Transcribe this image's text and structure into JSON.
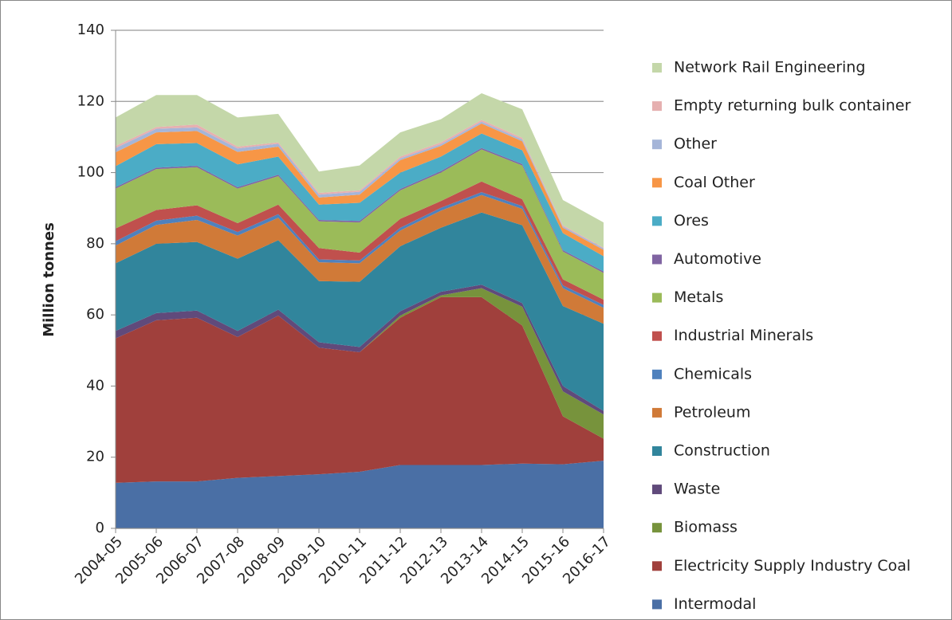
{
  "chart_data": {
    "type": "stacked-area",
    "y_label": "Million tonnes",
    "categories": [
      "2004-05",
      "2005-06",
      "2006-07",
      "2007-08",
      "2008-09",
      "2009-10",
      "2010-11",
      "2011-12",
      "2012-13",
      "2013-14",
      "2014-15",
      "2015-16",
      "2016-17"
    ],
    "ylim": [
      0,
      140
    ],
    "yticks": [
      0,
      20,
      40,
      60,
      80,
      100,
      120,
      140
    ],
    "grid": true,
    "series": [
      {
        "name": "Intermodal",
        "color": "#4a6fa5",
        "values": [
          12.8,
          13.2,
          13.2,
          14.2,
          14.7,
          15.2,
          15.9,
          17.8,
          17.8,
          17.8,
          18.2,
          18.0,
          19.0
        ]
      },
      {
        "name": "Electricity Supply Industry Coal",
        "color": "#a0403c",
        "values": [
          40.6,
          45.3,
          46.0,
          39.6,
          45.1,
          35.6,
          33.6,
          41.4,
          47.2,
          47.2,
          38.8,
          13.5,
          6.2
        ]
      },
      {
        "name": "Biomass",
        "color": "#77933c",
        "values": [
          0,
          0,
          0,
          0,
          0,
          0,
          0,
          0.6,
          0.5,
          2.5,
          5.3,
          7.0,
          6.8
        ]
      },
      {
        "name": "Waste",
        "color": "#604a7b",
        "values": [
          2.1,
          2.0,
          2.0,
          1.7,
          1.7,
          1.5,
          1.5,
          1.2,
          1.0,
          1.0,
          1.0,
          1.5,
          1.0
        ]
      },
      {
        "name": "Construction",
        "color": "#31859c",
        "values": [
          19.0,
          19.5,
          19.3,
          20.3,
          19.5,
          17.2,
          18.3,
          18.3,
          18.0,
          20.3,
          21.9,
          22.5,
          24.5
        ]
      },
      {
        "name": "Petroleum",
        "color": "#d07a38",
        "values": [
          5.0,
          5.3,
          6.2,
          6.5,
          6.3,
          5.3,
          5.2,
          4.4,
          4.8,
          4.9,
          4.6,
          5.0,
          4.5
        ]
      },
      {
        "name": "Chemicals",
        "color": "#4f81bd",
        "values": [
          1.2,
          1.2,
          1.2,
          1.0,
          1.0,
          0.8,
          0.8,
          0.8,
          0.8,
          0.8,
          0.8,
          0.8,
          0.8
        ]
      },
      {
        "name": "Industrial Minerals",
        "color": "#c0504d",
        "values": [
          3.6,
          3.0,
          2.9,
          2.5,
          2.7,
          3.2,
          2.2,
          2.5,
          1.9,
          3.0,
          1.9,
          1.7,
          1.5
        ]
      },
      {
        "name": "Metals",
        "color": "#9bbb59",
        "values": [
          11.2,
          11.5,
          10.7,
          9.7,
          8.0,
          7.5,
          8.5,
          8.0,
          8.0,
          9.0,
          9.5,
          7.8,
          7.5
        ]
      },
      {
        "name": "Automotive",
        "color": "#8064a2",
        "values": [
          0.4,
          0.4,
          0.4,
          0.4,
          0.4,
          0.4,
          0.4,
          0.4,
          0.4,
          0.4,
          0.4,
          0.4,
          0.4
        ]
      },
      {
        "name": "Ores",
        "color": "#4bacc6",
        "values": [
          5.9,
          6.6,
          6.4,
          6.4,
          5.1,
          4.3,
          5.1,
          4.6,
          4.1,
          4.1,
          3.9,
          4.8,
          4.3
        ]
      },
      {
        "name": "Coal Other",
        "color": "#f79646",
        "values": [
          3.9,
          3.3,
          3.4,
          3.5,
          2.8,
          2.0,
          2.3,
          3.5,
          3.0,
          2.8,
          2.5,
          1.5,
          1.8
        ]
      },
      {
        "name": "Other",
        "color": "#a5b5d8",
        "values": [
          1.2,
          1.0,
          1.0,
          1.0,
          0.8,
          0.8,
          0.8,
          0.5,
          0.5,
          0.5,
          0.5,
          0.4,
          0.4
        ]
      },
      {
        "name": "Empty returning bulk container",
        "color": "#e6b0b0",
        "values": [
          0.6,
          0.5,
          0.8,
          0.5,
          0.4,
          0.5,
          0.4,
          0.5,
          0.5,
          0.5,
          0.5,
          0.3,
          0.2
        ]
      },
      {
        "name": "Network Rail Engineering",
        "color": "#c4d7a9",
        "values": [
          8.0,
          9.0,
          8.3,
          8.2,
          8.0,
          6.0,
          7.0,
          6.8,
          6.5,
          7.5,
          8.0,
          7.1,
          7.1
        ]
      }
    ]
  }
}
